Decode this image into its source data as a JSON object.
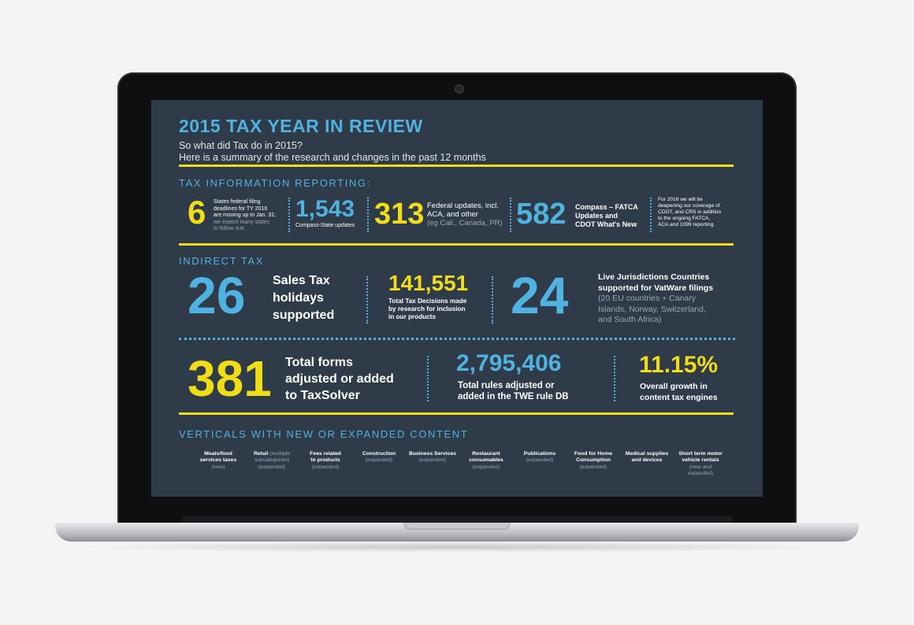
{
  "header": {
    "title": "2015 TAX YEAR IN REVIEW",
    "subtitle_line1": "So what did Tax do in 2015?",
    "subtitle_line2": "Here is a summary of the research and changes in the past 12 months"
  },
  "tax_info": {
    "section_title": "TAX INFORMATION REPORTING:",
    "stat1": {
      "value": "6",
      "line1": "States federal filing",
      "line2": "deadlines for TY 2016",
      "line3": "are moving up to Jan. 31;",
      "line4": "we expect many states",
      "line5": "to follow suit."
    },
    "stat2": {
      "value": "1,543",
      "label": "Compass-State updates"
    },
    "stat3": {
      "value": "313",
      "line1": "Federal updates, incl.",
      "line2": "ACA, and other",
      "line3": "(eg Cali., Canada, PR)"
    },
    "stat4": {
      "value": "582",
      "line1": "Compass – FATCA",
      "line2": "Updates and",
      "line3": "CDOT What's New"
    },
    "note": {
      "line1": "For 2016 we will be",
      "line2": "deepening our coverage of",
      "line3": "CDOT, and CRS in addition",
      "line4": "to the ongoing FATCA,",
      "line5": "ACA and 1099 reporting."
    }
  },
  "indirect_tax": {
    "section_title": "INDIRECT TAX",
    "stat1": {
      "value": "26",
      "line1": "Sales Tax",
      "line2": "holidays",
      "line3": "supported"
    },
    "stat2": {
      "value": "141,551",
      "line1": "Total Tax Decisions made",
      "line2": "by research for inclusion",
      "line3": "in our products"
    },
    "stat3": {
      "value": "24",
      "line1": "Live Jurisdictions Countries",
      "line2": "supported for VatWare filings",
      "line3": "(20 EU countries + Canary",
      "line4": "Islands, Norway, Switzerland,",
      "line5": "and South Africa)"
    },
    "stat4": {
      "value": "381",
      "line1": "Total forms",
      "line2": "adjusted or added",
      "line3": "to TaxSolver"
    },
    "stat5": {
      "value": "2,795,406",
      "line1": "Total rules adjusted or",
      "line2": "added in the TWE rule DB"
    },
    "stat6": {
      "value": "11.15%",
      "line1": "Overall growth in",
      "line2": "content tax engines"
    }
  },
  "verticals": {
    "section_title": "VERTICALS WITH NEW OR EXPANDED CONTENT",
    "items": [
      {
        "name1": "Moals/food",
        "name2": "services taxes",
        "status": "(new)"
      },
      {
        "name1": "Retail",
        "inline": "(multiple",
        "name2": "subcategories)",
        "status": "(expanded)"
      },
      {
        "name1": "Fees related",
        "name2": "to products",
        "status": "(expanded)"
      },
      {
        "name1": "Construction",
        "name2": "",
        "status": "(expanded)"
      },
      {
        "name1": "Business Services",
        "name2": "",
        "status": "(expanded)"
      },
      {
        "name1": "Restaurant",
        "name2": "consumables",
        "status": "(expanded)"
      },
      {
        "name1": "Publications",
        "name2": "",
        "status": "(expanded)"
      },
      {
        "name1": "Food for Home",
        "name2": "Consumption",
        "status": "(expanded)"
      },
      {
        "name1": "Medical supplies",
        "name2": "and devices",
        "status": ""
      },
      {
        "name1": "Short term motor",
        "name2": "vehicle rentals",
        "status": "(new and",
        "status2": "expanded)"
      }
    ]
  },
  "colors": {
    "yellow": "#f1dd17",
    "blue": "#4fb2e0",
    "screen_bg": "#2f3b48"
  },
  "icons": [
    "webcam-icon"
  ]
}
